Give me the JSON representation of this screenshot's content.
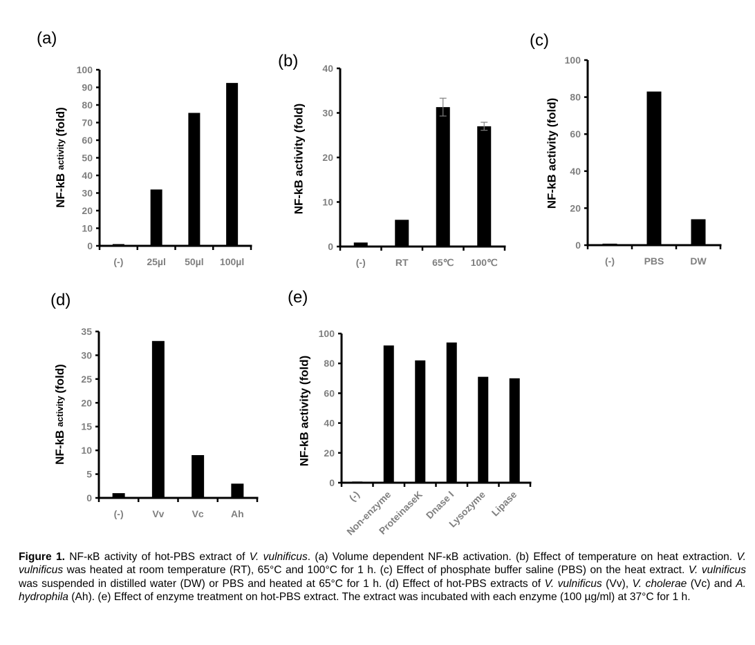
{
  "chart_data": [
    {
      "id": "a",
      "type": "bar",
      "panel_label": "(a)",
      "ylabel_main": "NF-kB",
      "ylabel_small": "activity",
      "ylabel_tail": "(fold)",
      "categories": [
        "(-)",
        "25µl",
        "50µl",
        "100µl"
      ],
      "values": [
        1,
        32,
        75.5,
        92.5
      ],
      "ylim": [
        0,
        100
      ],
      "yticks": [
        0,
        10,
        20,
        30,
        40,
        50,
        60,
        70,
        80,
        90,
        100
      ],
      "grid": false
    },
    {
      "id": "b",
      "type": "bar",
      "panel_label": "(b)",
      "ylabel": "NF-kB activity (fold)",
      "categories": [
        "(-)",
        "RT",
        "65℃",
        "100℃"
      ],
      "values": [
        0.9,
        6,
        31.3,
        27
      ],
      "errors": [
        0,
        0,
        2,
        0.9
      ],
      "ylim": [
        0,
        40
      ],
      "yticks": [
        0,
        10,
        20,
        30,
        40
      ],
      "grid": false
    },
    {
      "id": "c",
      "type": "bar",
      "panel_label": "(c)",
      "ylabel": "NF-kB activity (fold)",
      "categories": [
        "(-)",
        "PBS",
        "DW"
      ],
      "values": [
        0.8,
        83,
        14
      ],
      "ylim": [
        0,
        100
      ],
      "yticks": [
        0,
        20,
        40,
        60,
        80,
        100
      ],
      "grid": false
    },
    {
      "id": "d",
      "type": "bar",
      "panel_label": "(d)",
      "ylabel_main": "NF-kB",
      "ylabel_small": "activity",
      "ylabel_tail": "(fold)",
      "categories": [
        "(-)",
        "Vv",
        "Vc",
        "Ah"
      ],
      "values": [
        1,
        33,
        9,
        3
      ],
      "ylim": [
        0,
        35
      ],
      "yticks": [
        0,
        5,
        10,
        15,
        20,
        25,
        30,
        35
      ],
      "grid": false
    },
    {
      "id": "e",
      "type": "bar",
      "panel_label": "(e)",
      "ylabel": "NF-kB activity (fold)",
      "categories": [
        "(-)",
        "Non-enzyme",
        "ProteinaseK",
        "Dnase I",
        "Lysozyme",
        "Lipase"
      ],
      "values": [
        0.8,
        92,
        82,
        94,
        71,
        70
      ],
      "ylim": [
        0,
        100
      ],
      "yticks": [
        0,
        20,
        40,
        60,
        80,
        100
      ],
      "rotated_labels": true,
      "grid": false
    }
  ],
  "caption": {
    "figure_label": "Figure 1.",
    "t1": " NF-κB activity of hot-PBS extract of ",
    "i1": "V. vulnificus",
    "t2": ". (a) Volume dependent NF-κB activation. (b) Effect of temperature on heat extraction. ",
    "i2": "V. vulnificus",
    "t3": " was heated at room temperature (RT), 65°C and 100°C for 1 h. (c) Effect of phosphate buffer saline (PBS) on the heat extract. ",
    "i3": "V. vulnificus",
    "t4": " was suspended in distilled water (DW) or PBS and heated at 65°C for 1 h. (d) Effect of hot-PBS extracts of ",
    "i4": "V. vulnificus",
    "t5": " (Vv), ",
    "i5": "V. cholerae",
    "t6": " (Vc) and ",
    "i6": "A. hydrophila",
    "t7": " (Ah). (e) Effect of enzyme treatment on hot-PBS extract. The extract was incubated with each enzyme (100 µg/ml) at 37°C for 1 h."
  },
  "colors": {
    "bar": "#000000",
    "axis": "#000000",
    "tick_label": "#7f7f7f",
    "error_bar": "#7f7f7f"
  }
}
